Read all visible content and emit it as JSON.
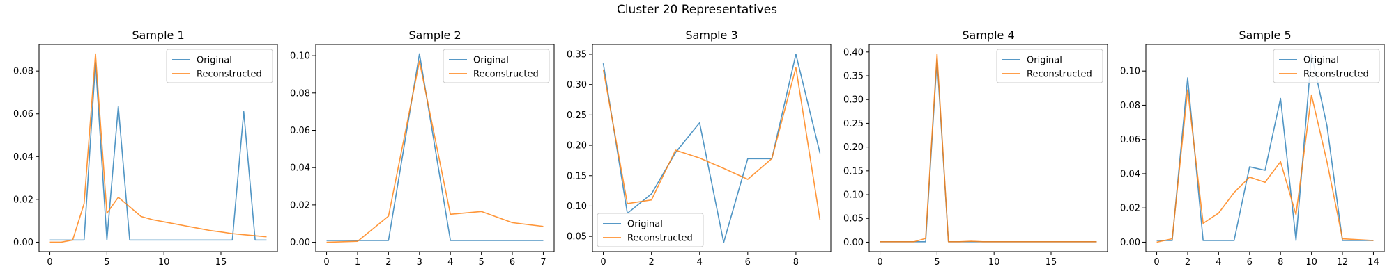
{
  "figure": {
    "title": "Cluster 20 Representatives"
  },
  "colors": {
    "original": "#1f77b4",
    "reconstructed": "#ff7f0e"
  },
  "chart_data": [
    {
      "type": "line",
      "title": "Sample 1",
      "xlim": [
        -0.95,
        19.95
      ],
      "ylim": [
        -0.0044,
        0.0924
      ],
      "xticks": [
        0,
        5,
        10,
        15
      ],
      "yticks": [
        0.0,
        0.02,
        0.04,
        0.06,
        0.08
      ],
      "ytick_labels": [
        "0.00",
        "0.02",
        "0.04",
        "0.06",
        "0.08"
      ],
      "legend": "top-right",
      "x": [
        0,
        1,
        2,
        3,
        4,
        5,
        6,
        7,
        8,
        9,
        10,
        11,
        12,
        13,
        14,
        15,
        16,
        17,
        18,
        19
      ],
      "series": [
        {
          "name": "Original",
          "values": [
            0.001,
            0.001,
            0.001,
            0.001,
            0.084,
            0.001,
            0.0635,
            0.001,
            0.001,
            0.001,
            0.001,
            0.001,
            0.001,
            0.001,
            0.001,
            0.001,
            0.001,
            0.061,
            0.001,
            0.001
          ]
        },
        {
          "name": "Reconstructed",
          "values": [
            0.0,
            0.0,
            0.001,
            0.018,
            0.088,
            0.0135,
            0.021,
            0.0165,
            0.012,
            0.0105,
            0.0095,
            0.0085,
            0.0075,
            0.0065,
            0.0055,
            0.0048,
            0.004,
            0.0035,
            0.003,
            0.0025
          ]
        }
      ]
    },
    {
      "type": "line",
      "title": "Sample 2",
      "xlim": [
        -0.35,
        7.35
      ],
      "ylim": [
        -0.005,
        0.106
      ],
      "xticks": [
        0,
        1,
        2,
        3,
        4,
        5,
        6,
        7
      ],
      "yticks": [
        0.0,
        0.02,
        0.04,
        0.06,
        0.08,
        0.1
      ],
      "ytick_labels": [
        "0.00",
        "0.02",
        "0.04",
        "0.06",
        "0.08",
        "0.10"
      ],
      "legend": "top-right",
      "x": [
        0,
        1,
        2,
        3,
        4,
        5,
        6,
        7
      ],
      "series": [
        {
          "name": "Original",
          "values": [
            0.001,
            0.001,
            0.001,
            0.101,
            0.001,
            0.001,
            0.001,
            0.001
          ]
        },
        {
          "name": "Reconstructed",
          "values": [
            0.0,
            0.0005,
            0.014,
            0.097,
            0.015,
            0.0165,
            0.0105,
            0.0085
          ]
        }
      ]
    },
    {
      "type": "line",
      "title": "Sample 3",
      "xlim": [
        -0.45,
        9.45
      ],
      "ylim": [
        0.025,
        0.366
      ],
      "xticks": [
        0,
        2,
        4,
        6,
        8
      ],
      "yticks": [
        0.05,
        0.1,
        0.15,
        0.2,
        0.25,
        0.3,
        0.35
      ],
      "ytick_labels": [
        "0.05",
        "0.10",
        "0.15",
        "0.20",
        "0.25",
        "0.30",
        "0.35"
      ],
      "legend": "bottom-left",
      "x": [
        0,
        1,
        2,
        3,
        4,
        5,
        6,
        7,
        8,
        9
      ],
      "series": [
        {
          "name": "Original",
          "values": [
            0.335,
            0.088,
            0.12,
            0.188,
            0.237,
            0.04,
            0.178,
            0.178,
            0.35,
            0.187
          ]
        },
        {
          "name": "Reconstructed",
          "values": [
            0.325,
            0.104,
            0.11,
            0.192,
            0.179,
            0.162,
            0.144,
            0.178,
            0.328,
            0.077
          ]
        }
      ]
    },
    {
      "type": "line",
      "title": "Sample 4",
      "xlim": [
        -0.95,
        19.95
      ],
      "ylim": [
        -0.0198,
        0.4158
      ],
      "xticks": [
        0,
        5,
        10,
        15
      ],
      "yticks": [
        0.0,
        0.05,
        0.1,
        0.15,
        0.2,
        0.25,
        0.3,
        0.35,
        0.4
      ],
      "ytick_labels": [
        "0.00",
        "0.05",
        "0.10",
        "0.15",
        "0.20",
        "0.25",
        "0.30",
        "0.35",
        "0.40"
      ],
      "legend": "top-right",
      "x": [
        0,
        1,
        2,
        3,
        4,
        5,
        6,
        7,
        8,
        9,
        10,
        11,
        12,
        13,
        14,
        15,
        16,
        17,
        18,
        19
      ],
      "series": [
        {
          "name": "Original",
          "values": [
            0.001,
            0.001,
            0.001,
            0.001,
            0.001,
            0.385,
            0.001,
            0.001,
            0.001,
            0.001,
            0.001,
            0.001,
            0.001,
            0.001,
            0.001,
            0.001,
            0.001,
            0.001,
            0.001,
            0.001
          ]
        },
        {
          "name": "Reconstructed",
          "values": [
            0.001,
            0.001,
            0.001,
            0.001,
            0.008,
            0.396,
            0.001,
            0.001,
            0.002,
            0.001,
            0.001,
            0.001,
            0.001,
            0.001,
            0.001,
            0.001,
            0.001,
            0.001,
            0.001,
            0.001
          ]
        }
      ]
    },
    {
      "type": "line",
      "title": "Sample 5",
      "xlim": [
        -0.7,
        14.7
      ],
      "ylim": [
        -0.0055,
        0.1155
      ],
      "xticks": [
        0,
        2,
        4,
        6,
        8,
        10,
        12,
        14
      ],
      "yticks": [
        0.0,
        0.02,
        0.04,
        0.06,
        0.08,
        0.1
      ],
      "ytick_labels": [
        "0.00",
        "0.02",
        "0.04",
        "0.06",
        "0.08",
        "0.10"
      ],
      "legend": "top-right",
      "x": [
        0,
        1,
        2,
        3,
        4,
        5,
        6,
        7,
        8,
        9,
        10,
        11,
        12,
        13,
        14
      ],
      "series": [
        {
          "name": "Original",
          "values": [
            0.001,
            0.001,
            0.096,
            0.001,
            0.001,
            0.001,
            0.044,
            0.042,
            0.084,
            0.001,
            0.11,
            0.068,
            0.001,
            0.001,
            0.001
          ]
        },
        {
          "name": "Reconstructed",
          "values": [
            0.0,
            0.002,
            0.089,
            0.011,
            0.017,
            0.029,
            0.038,
            0.035,
            0.047,
            0.016,
            0.086,
            0.047,
            0.002,
            0.0015,
            0.001
          ]
        }
      ]
    }
  ]
}
